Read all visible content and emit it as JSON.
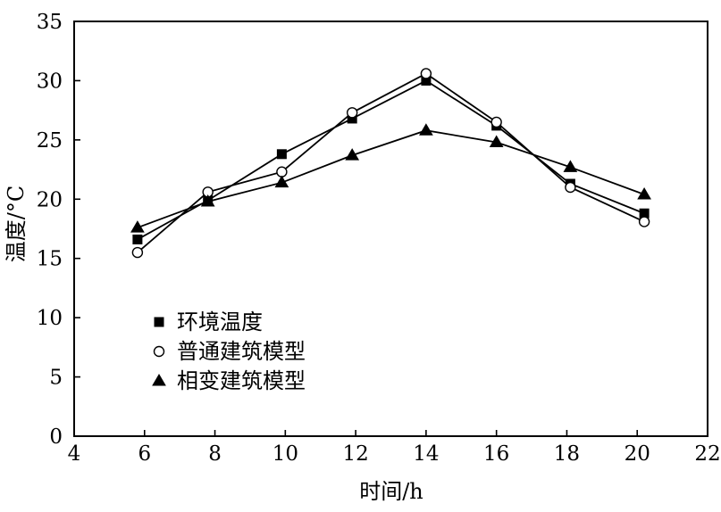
{
  "chart_data": {
    "type": "line",
    "title": "",
    "xlabel": "时间/h",
    "ylabel": "温度/°C",
    "xlim": [
      4,
      22
    ],
    "ylim": [
      0,
      35
    ],
    "x_ticks": [
      4,
      6,
      8,
      10,
      12,
      14,
      16,
      18,
      20,
      22
    ],
    "y_ticks": [
      0,
      5,
      10,
      15,
      20,
      25,
      30,
      35
    ],
    "x_tick_labels": [
      "4",
      "6",
      "8",
      "10",
      "12",
      "14",
      "16",
      "18",
      "20",
      "22"
    ],
    "y_tick_labels": [
      "0",
      "5",
      "10",
      "15",
      "20",
      "25",
      "30",
      "35"
    ],
    "legend_position": "lower-left",
    "grid": false,
    "series": [
      {
        "name": "环境温度",
        "marker": "filled-square",
        "points": [
          {
            "x": 5.8,
            "y": 16.6
          },
          {
            "x": 7.8,
            "y": 19.9
          },
          {
            "x": 9.9,
            "y": 23.8
          },
          {
            "x": 11.9,
            "y": 26.8
          },
          {
            "x": 14.0,
            "y": 30.0
          },
          {
            "x": 16.0,
            "y": 26.2
          },
          {
            "x": 18.1,
            "y": 21.3
          },
          {
            "x": 20.2,
            "y": 18.8
          }
        ]
      },
      {
        "name": "普通建筑模型",
        "marker": "open-circle",
        "points": [
          {
            "x": 5.8,
            "y": 15.5
          },
          {
            "x": 7.8,
            "y": 20.6
          },
          {
            "x": 9.9,
            "y": 22.3
          },
          {
            "x": 11.9,
            "y": 27.3
          },
          {
            "x": 14.0,
            "y": 30.6
          },
          {
            "x": 16.0,
            "y": 26.5
          },
          {
            "x": 18.1,
            "y": 21.0
          },
          {
            "x": 20.2,
            "y": 18.1
          }
        ]
      },
      {
        "name": "相变建筑模型",
        "marker": "filled-triangle",
        "points": [
          {
            "x": 5.8,
            "y": 17.6
          },
          {
            "x": 7.8,
            "y": 19.8
          },
          {
            "x": 9.9,
            "y": 21.4
          },
          {
            "x": 11.9,
            "y": 23.7
          },
          {
            "x": 14.0,
            "y": 25.8
          },
          {
            "x": 16.0,
            "y": 24.8
          },
          {
            "x": 18.1,
            "y": 22.7
          },
          {
            "x": 20.2,
            "y": 20.4
          }
        ]
      }
    ]
  }
}
